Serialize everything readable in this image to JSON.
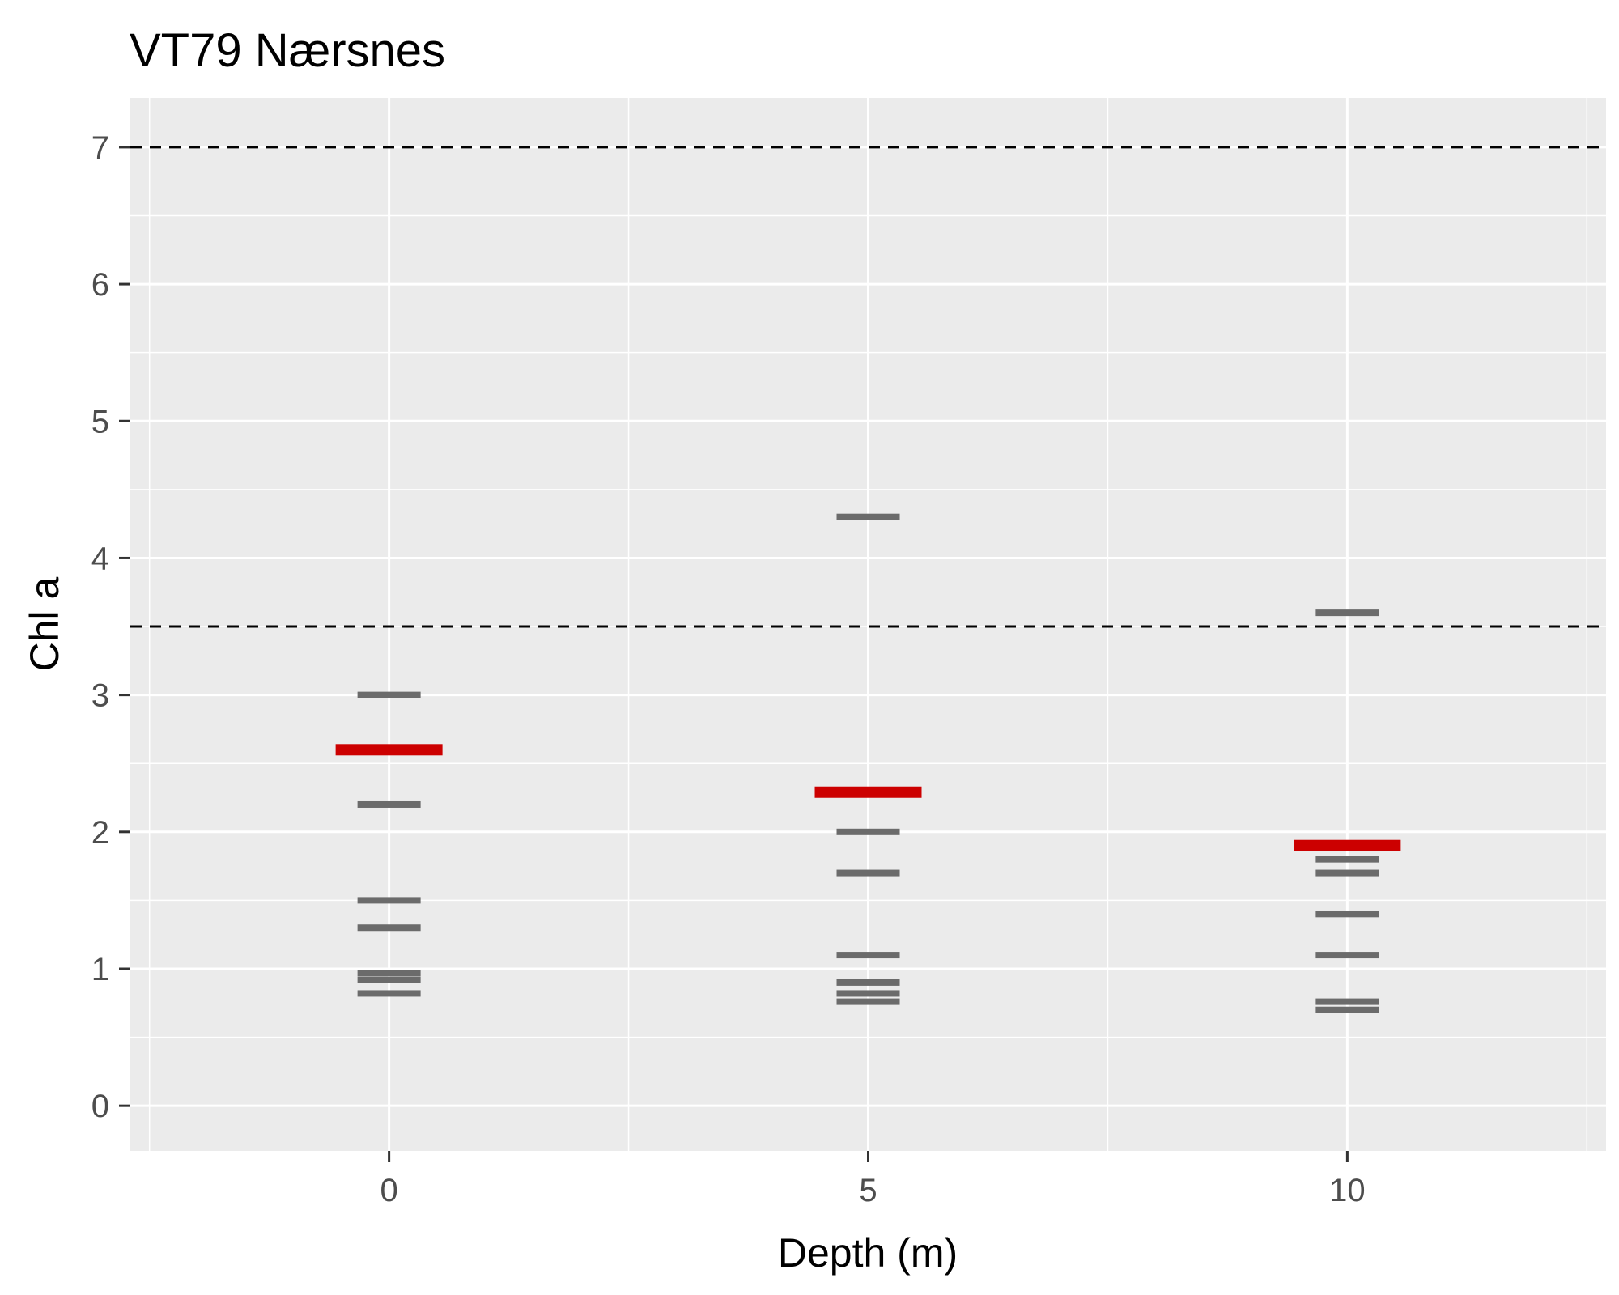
{
  "chart_data": {
    "type": "scatter",
    "title": "VT79 Nærsnes",
    "xlabel": "Depth (m)",
    "ylabel": "Chl a",
    "xlim": [
      -2.7,
      12.7
    ],
    "ylim": [
      -0.33,
      7.36
    ],
    "x_ticks": [
      0,
      5,
      10
    ],
    "y_ticks": [
      0,
      1,
      2,
      3,
      4,
      5,
      6,
      7
    ],
    "x_minor_ticks": [
      -2.5,
      2.5,
      7.5,
      12.5
    ],
    "y_minor_ticks": [
      0.5,
      1.5,
      2.5,
      3.5,
      4.5,
      5.5,
      6.5
    ],
    "grid": true,
    "reference_lines": [
      {
        "y": 7.0,
        "style": "dashed",
        "color": "#000000"
      },
      {
        "y": 3.5,
        "style": "dashed",
        "color": "#000000"
      }
    ],
    "series": [
      {
        "marker": "horizontal-dash",
        "color": "#6b6b6b",
        "points": [
          {
            "x": 0,
            "y": 3.0
          },
          {
            "x": 0,
            "y": 2.2
          },
          {
            "x": 0,
            "y": 1.5
          },
          {
            "x": 0,
            "y": 1.3
          },
          {
            "x": 0,
            "y": 0.97
          },
          {
            "x": 0,
            "y": 0.92
          },
          {
            "x": 0,
            "y": 0.82
          },
          {
            "x": 5,
            "y": 4.3
          },
          {
            "x": 5,
            "y": 2.0
          },
          {
            "x": 5,
            "y": 1.7
          },
          {
            "x": 5,
            "y": 1.1
          },
          {
            "x": 5,
            "y": 0.9
          },
          {
            "x": 5,
            "y": 0.82
          },
          {
            "x": 5,
            "y": 0.76
          },
          {
            "x": 10,
            "y": 3.6
          },
          {
            "x": 10,
            "y": 1.8
          },
          {
            "x": 10,
            "y": 1.7
          },
          {
            "x": 10,
            "y": 1.4
          },
          {
            "x": 10,
            "y": 1.1
          },
          {
            "x": 10,
            "y": 0.76
          },
          {
            "x": 10,
            "y": 0.7
          }
        ]
      },
      {
        "marker": "horizontal-bar",
        "color": "#cc0000",
        "points": [
          {
            "x": 0,
            "y": 2.6
          },
          {
            "x": 5,
            "y": 2.29
          },
          {
            "x": 10,
            "y": 1.9
          }
        ]
      }
    ],
    "colors": {
      "panel_background": "#ebebeb",
      "grid": "#ffffff",
      "tick": "#333333"
    }
  }
}
